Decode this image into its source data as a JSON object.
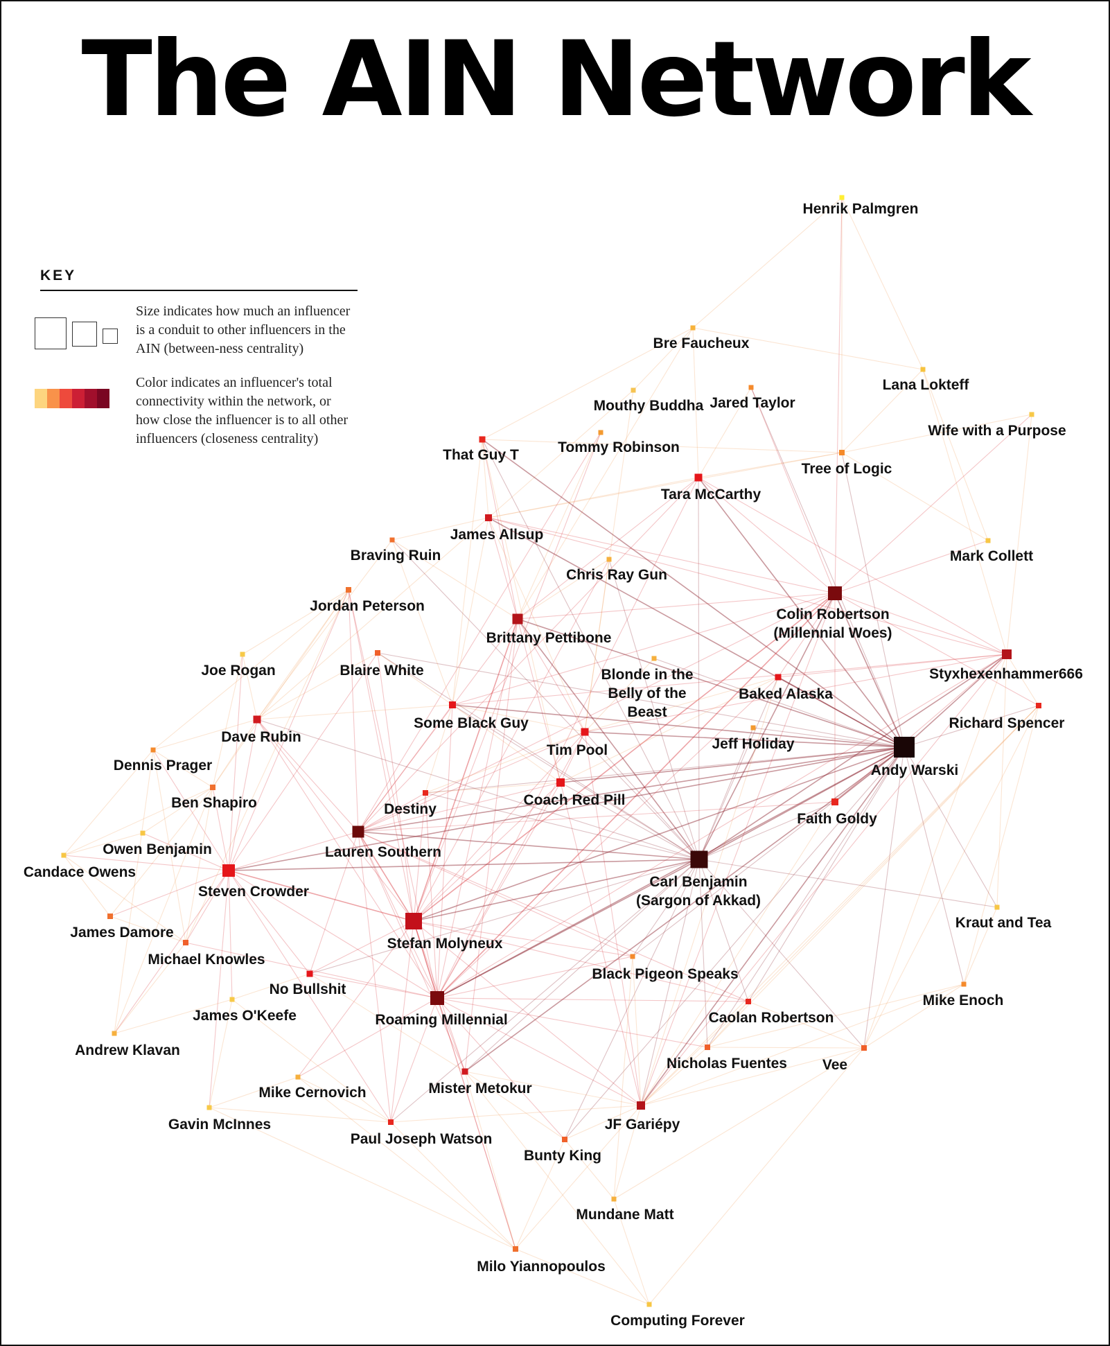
{
  "title": "The AIN Network",
  "key": {
    "heading": "KEY",
    "size_text": "Size indicates how much an influencer is a conduit to other influencers in the AIN (between-ness centrality)",
    "color_text": "Color indicates an influencer's total connectivity within the network, or how close the influencer is to all other influencers (closeness centrality)",
    "color_scale": [
      "#fdd57f",
      "#f9924a",
      "#ee4a3c",
      "#cc1f35",
      "#a10f2c",
      "#7a0622"
    ]
  },
  "nodes": [
    {
      "id": "henrik-palmgren",
      "label": "Henrik Palmgren",
      "color": "#ffee33"
    },
    {
      "id": "bre-faucheux",
      "label": "Bre Faucheux",
      "color": "#f7b23a"
    },
    {
      "id": "lana-lokteff",
      "label": "Lana Lokteff",
      "color": "#f7c33e"
    },
    {
      "id": "mouthy-buddha",
      "label": "Mouthy Buddha",
      "color": "#f6c453"
    },
    {
      "id": "jared-taylor",
      "label": "Jared Taylor",
      "color": "#f48a2c"
    },
    {
      "id": "wife-with-a-purpose",
      "label": "Wife with a Purpose",
      "color": "#f7c848"
    },
    {
      "id": "that-guy-t",
      "label": "That Guy T",
      "color": "#e8271e"
    },
    {
      "id": "tommy-robinson",
      "label": "Tommy Robinson",
      "color": "#f39a30"
    },
    {
      "id": "tree-of-logic",
      "label": "Tree of Logic",
      "color": "#f58a2a"
    },
    {
      "id": "tara-mccarthy",
      "label": "Tara McCarthy",
      "color": "#e5161a"
    },
    {
      "id": "james-allsup",
      "label": "James Allsup",
      "color": "#d11a1f"
    },
    {
      "id": "braving-ruin",
      "label": "Braving Ruin",
      "color": "#f0702e"
    },
    {
      "id": "chris-ray-gun",
      "label": "Chris Ray Gun",
      "color": "#f6b03e"
    },
    {
      "id": "mark-collett",
      "label": "Mark Collett",
      "color": "#f7c645"
    },
    {
      "id": "jordan-peterson",
      "label": "Jordan Peterson",
      "color": "#f0722e"
    },
    {
      "id": "colin-robertson",
      "label": "Colin Robertson|(Millennial Woes)",
      "color": "#7a0a0d"
    },
    {
      "id": "brittany-pettibone",
      "label": "Brittany Pettibone",
      "color": "#b3141a"
    },
    {
      "id": "joe-rogan",
      "label": "Joe Rogan",
      "color": "#f7c948"
    },
    {
      "id": "blaire-white",
      "label": "Blaire White",
      "color": "#f0602a"
    },
    {
      "id": "blonde-in-the-belly",
      "label": "Blonde in the|Belly of the|Beast",
      "color": "#f6b03e"
    },
    {
      "id": "styxhexenhammer666",
      "label": "Styxhexenhammer666",
      "color": "#b3141a"
    },
    {
      "id": "baked-alaska",
      "label": "Baked Alaska",
      "color": "#e5161a"
    },
    {
      "id": "richard-spencer",
      "label": "Richard Spencer",
      "color": "#e8271e"
    },
    {
      "id": "some-black-guy",
      "label": "Some Black Guy",
      "color": "#e5161a"
    },
    {
      "id": "dave-rubin",
      "label": "Dave Rubin",
      "color": "#d11a1f"
    },
    {
      "id": "tim-pool",
      "label": "Tim Pool",
      "color": "#e5161a"
    },
    {
      "id": "jeff-holiday",
      "label": "Jeff Holiday",
      "color": "#f39a30"
    },
    {
      "id": "andy-warski",
      "label": "Andy Warski",
      "color": "#1a0606"
    },
    {
      "id": "dennis-prager",
      "label": "Dennis Prager",
      "color": "#f48a2c"
    },
    {
      "id": "ben-shapiro",
      "label": "Ben Shapiro",
      "color": "#f0702e"
    },
    {
      "id": "coach-red-pill",
      "label": "Coach Red Pill",
      "color": "#e5161a"
    },
    {
      "id": "destiny",
      "label": "Destiny",
      "color": "#e8271e"
    },
    {
      "id": "faith-goldy",
      "label": "Faith Goldy",
      "color": "#e8271e"
    },
    {
      "id": "lauren-southern",
      "label": "Lauren Southern",
      "color": "#6b0a0a"
    },
    {
      "id": "owen-benjamin",
      "label": "Owen Benjamin",
      "color": "#f7c645"
    },
    {
      "id": "carl-benjamin",
      "label": "Carl Benjamin|(Sargon of Akkad)",
      "color": "#3a0808"
    },
    {
      "id": "candace-owens",
      "label": "Candace Owens",
      "color": "#f7c645"
    },
    {
      "id": "steven-crowder",
      "label": "Steven Crowder",
      "color": "#e5161a"
    },
    {
      "id": "stefan-molyneux",
      "label": "Stefan Molyneux",
      "color": "#c3101a"
    },
    {
      "id": "kraut-and-tea",
      "label": "Kraut and Tea",
      "color": "#f7c645"
    },
    {
      "id": "james-damore",
      "label": "James Damore",
      "color": "#f0702e"
    },
    {
      "id": "michael-knowles",
      "label": "Michael Knowles",
      "color": "#f0602a"
    },
    {
      "id": "black-pigeon-speaks",
      "label": "Black Pigeon Speaks",
      "color": "#f48a2c"
    },
    {
      "id": "no-bullshit",
      "label": "No Bullshit",
      "color": "#e5161a"
    },
    {
      "id": "mike-enoch",
      "label": "Mike Enoch",
      "color": "#f48a2c"
    },
    {
      "id": "roaming-millennial",
      "label": "Roaming Millennial",
      "color": "#7a0a0d"
    },
    {
      "id": "james-okeefe",
      "label": "James O'Keefe",
      "color": "#f7c948"
    },
    {
      "id": "caolan-robertson",
      "label": "Caolan Robertson",
      "color": "#e8271e"
    },
    {
      "id": "andrew-klavan",
      "label": "Andrew Klavan",
      "color": "#f6b03e"
    },
    {
      "id": "nicholas-fuentes",
      "label": "Nicholas Fuentes",
      "color": "#f0602a"
    },
    {
      "id": "vee",
      "label": "Vee",
      "color": "#f0602a"
    },
    {
      "id": "mister-metokur",
      "label": "Mister Metokur",
      "color": "#d11a1f"
    },
    {
      "id": "mike-cernovich",
      "label": "Mike Cernovich",
      "color": "#f6b03e"
    },
    {
      "id": "gavin-mcinnes",
      "label": "Gavin McInnes",
      "color": "#f7c948"
    },
    {
      "id": "jf-gariepy",
      "label": "JF Gariépy",
      "color": "#b3141a"
    },
    {
      "id": "paul-joseph-watson",
      "label": "Paul Joseph Watson",
      "color": "#e8271e"
    },
    {
      "id": "bunty-king",
      "label": "Bunty King",
      "color": "#f0602a"
    },
    {
      "id": "mundane-matt",
      "label": "Mundane Matt",
      "color": "#f6b03e"
    },
    {
      "id": "milo-yiannopoulos",
      "label": "Milo Yiannopoulos",
      "color": "#f0702e"
    },
    {
      "id": "computing-forever",
      "label": "Computing Forever",
      "color": "#f7c645"
    }
  ]
}
